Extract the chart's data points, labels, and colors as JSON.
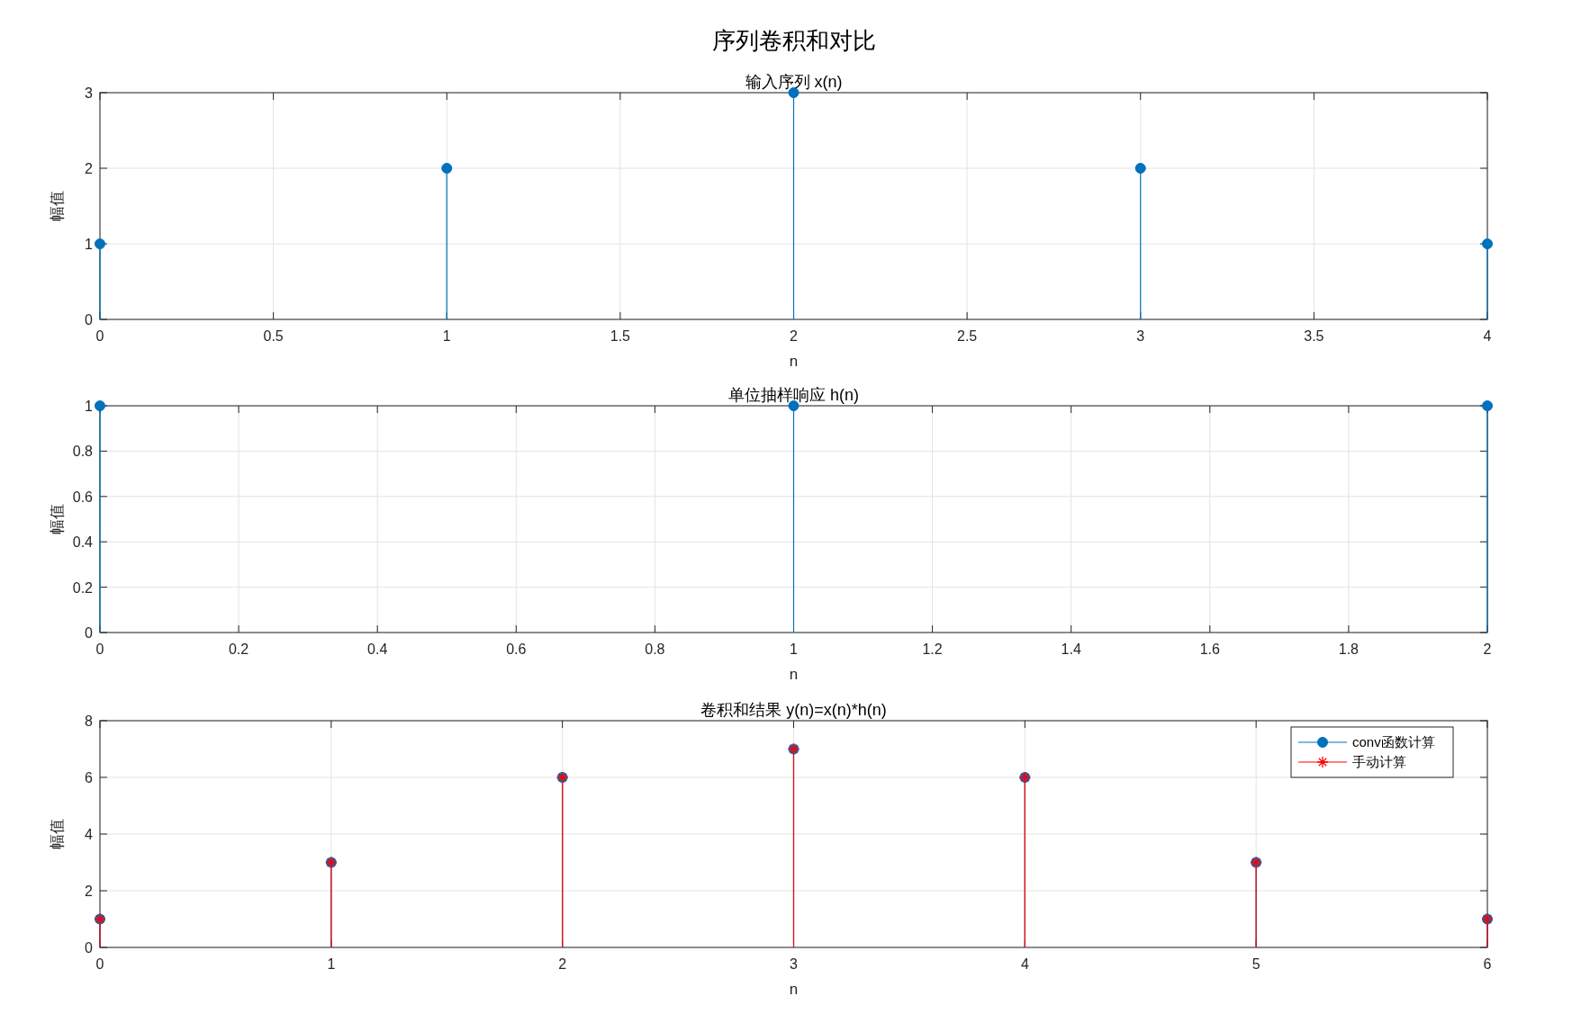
{
  "chart_data": [
    {
      "type": "lollipop",
      "title": "输入序列 x(n)",
      "annotations": [
        "序列卷积和对比"
      ],
      "xlabel": "n",
      "ylabel": "幅值",
      "x": [
        0,
        1,
        2,
        3,
        4
      ],
      "xlim": [
        0,
        4
      ],
      "ylim": [
        0,
        3
      ],
      "xticks": [
        0,
        0.5,
        1,
        1.5,
        2,
        2.5,
        3,
        3.5,
        4
      ],
      "yticks": [
        0,
        1,
        2,
        3
      ],
      "grid": true,
      "marker": "circle",
      "series": [
        {
          "color": "#0072bd",
          "values": [
            1,
            2,
            3,
            2,
            1
          ]
        }
      ]
    },
    {
      "type": "lollipop",
      "title": "单位抽样响应 h(n)",
      "xlabel": "n",
      "ylabel": "幅值",
      "x": [
        0,
        1,
        2
      ],
      "xlim": [
        0,
        2
      ],
      "ylim": [
        0,
        1
      ],
      "xticks": [
        0,
        0.2,
        0.4,
        0.6,
        0.8,
        1,
        1.2,
        1.4,
        1.6,
        1.8,
        2
      ],
      "yticks": [
        0,
        0.2,
        0.4,
        0.6,
        0.8,
        1
      ],
      "grid": true,
      "marker": "circle",
      "series": [
        {
          "color": "#0072bd",
          "values": [
            1,
            1,
            1
          ]
        }
      ]
    },
    {
      "type": "lollipop",
      "title": "卷积和结果 y(n)=x(n)*h(n)",
      "xlabel": "n",
      "ylabel": "幅值",
      "x": [
        0,
        1,
        2,
        3,
        4,
        5,
        6
      ],
      "xlim": [
        0,
        6
      ],
      "ylim": [
        0,
        8
      ],
      "xticks": [
        0,
        1,
        2,
        3,
        4,
        5,
        6
      ],
      "yticks": [
        0,
        2,
        4,
        6,
        8
      ],
      "grid": true,
      "legend": "top right",
      "series": [
        {
          "name": "conv函数计算",
          "color": "#0072bd",
          "marker": "circle",
          "values": [
            1,
            3,
            6,
            7,
            6,
            3,
            1
          ]
        },
        {
          "name": "手动计算",
          "color": "#ff0000",
          "marker": "cross",
          "values": [
            1,
            3,
            6,
            7,
            6,
            3,
            1
          ]
        }
      ]
    }
  ]
}
